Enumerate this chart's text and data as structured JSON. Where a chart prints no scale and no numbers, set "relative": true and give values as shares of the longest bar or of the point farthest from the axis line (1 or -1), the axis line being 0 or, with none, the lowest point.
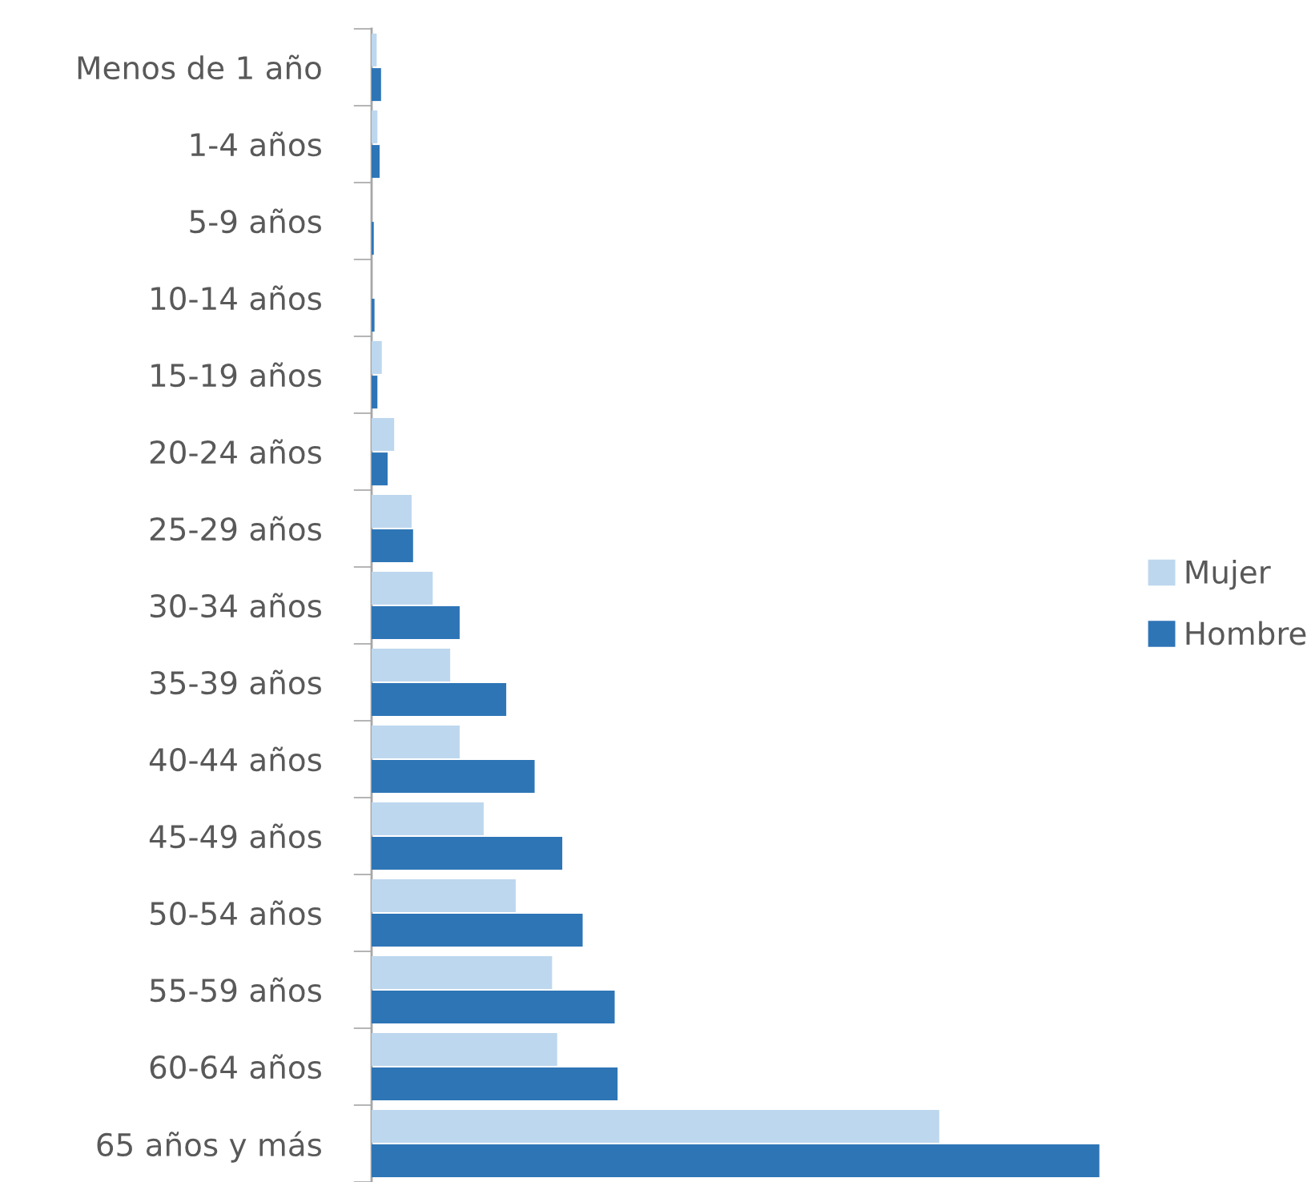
{
  "chart_data": {
    "type": "bar",
    "orientation": "horizontal",
    "relative": true,
    "legend": "right",
    "categories": [
      "Menos de 1 año",
      "1-4 años",
      "5-9 años",
      "10-14 años",
      "15-19 años",
      "20-24 años",
      "25-29 años",
      "30-34 años",
      "35-39 años",
      "40-44 años",
      "45-49 años",
      "50-54 años",
      "55-59 años",
      "60-64 años",
      "65 años y más"
    ],
    "series": [
      {
        "name": "Mujer",
        "color": "#bdd7ee",
        "values": [
          0.007,
          0.008,
          0,
          0,
          0.014,
          0.031,
          0.055,
          0.084,
          0.108,
          0.121,
          0.154,
          0.198,
          0.248,
          0.255,
          0.78
        ]
      },
      {
        "name": "Hombre",
        "color": "#2e75b6",
        "values": [
          0.013,
          0.011,
          0.003,
          0.004,
          0.008,
          0.022,
          0.057,
          0.121,
          0.185,
          0.224,
          0.262,
          0.29,
          0.334,
          0.338,
          1
        ]
      }
    ]
  }
}
